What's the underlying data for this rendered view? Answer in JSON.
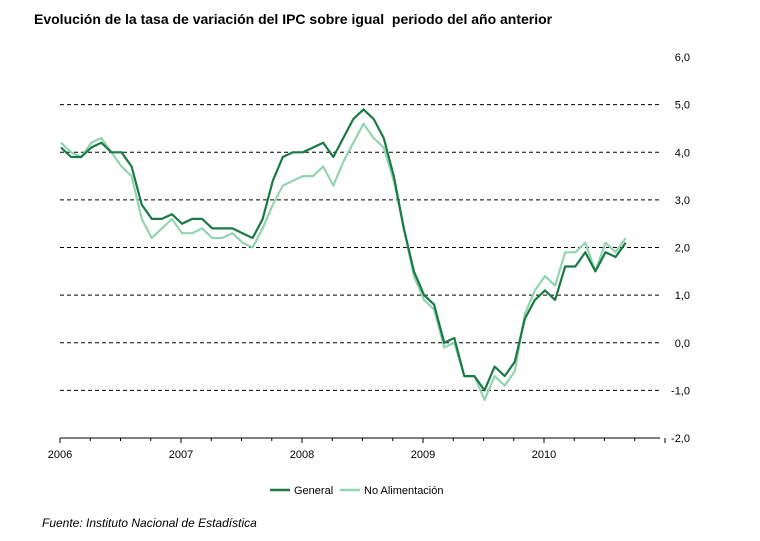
{
  "title": "Evolución de la tasa de variación del IPC sobre igual  periodo del año anterior",
  "source": "Fuente: Instituto Nacional de Estadística",
  "colors": {
    "general": "#1a7a44",
    "no_alimentacion": "#93d4b0",
    "grid": "#000000"
  },
  "chart_data": {
    "type": "line",
    "title": "Evolución de la tasa de variación del IPC sobre igual  periodo del año anterior",
    "xlabel": "",
    "ylabel": "",
    "ylim": [
      -2.0,
      6.0
    ],
    "ytick_values": [
      6.0,
      5.0,
      4.0,
      3.0,
      2.0,
      1.0,
      0.0,
      -1.0,
      -2.0
    ],
    "ytick_labels": [
      "6,0",
      "5,0",
      "4,0",
      "3,0",
      "2,0",
      "1,0",
      "0,0",
      "-1,0",
      "-2,0"
    ],
    "xtick_labels": [
      "2006",
      "2007",
      "2008",
      "2009",
      "2010"
    ],
    "grid": "horizontal dashed",
    "legend": "bottom-center",
    "series": [
      {
        "name": "General",
        "values": [
          4.1,
          3.9,
          3.9,
          4.1,
          4.2,
          4.0,
          4.0,
          3.7,
          2.9,
          2.6,
          2.6,
          2.7,
          2.5,
          2.6,
          2.6,
          2.4,
          2.4,
          2.4,
          2.3,
          2.2,
          2.6,
          3.4,
          3.9,
          4.0,
          4.0,
          4.1,
          4.2,
          3.9,
          4.3,
          4.7,
          4.9,
          4.7,
          4.3,
          3.5,
          2.4,
          1.5,
          1.0,
          0.8,
          0.0,
          0.1,
          -0.7,
          -0.7,
          -1.0,
          -0.5,
          -0.7,
          -0.4,
          0.5,
          0.9,
          1.1,
          0.9,
          1.6,
          1.6,
          1.9,
          1.5,
          1.9,
          1.8,
          2.1
        ]
      },
      {
        "name": "No Alimentación",
        "values": [
          4.2,
          4.0,
          3.9,
          4.2,
          4.3,
          4.0,
          3.7,
          3.5,
          2.6,
          2.2,
          2.4,
          2.6,
          2.3,
          2.3,
          2.4,
          2.2,
          2.2,
          2.3,
          2.1,
          2.0,
          2.4,
          2.9,
          3.3,
          3.4,
          3.5,
          3.5,
          3.7,
          3.3,
          3.8,
          4.2,
          4.6,
          4.3,
          4.1,
          3.4,
          2.4,
          1.4,
          0.9,
          0.7,
          -0.1,
          0.0,
          -0.7,
          -0.7,
          -1.2,
          -0.7,
          -0.9,
          -0.6,
          0.6,
          1.1,
          1.4,
          1.2,
          1.9,
          1.9,
          2.1,
          1.5,
          2.1,
          1.9,
          2.2
        ]
      }
    ]
  }
}
